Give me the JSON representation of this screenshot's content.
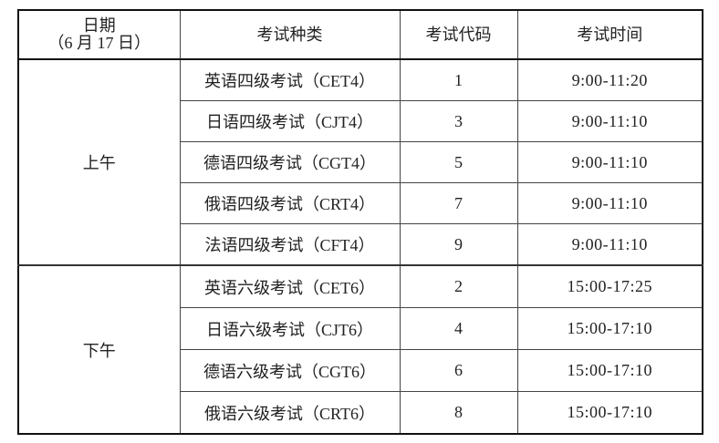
{
  "header": {
    "date_label": "日期",
    "date_value": "（6 月 17 日）",
    "exam_type": "考试种类",
    "exam_code": "考试代码",
    "exam_time": "考试时间"
  },
  "groups": [
    {
      "period": "上午",
      "rows": [
        {
          "name": "英语四级考试（CET4）",
          "code": "1",
          "time": "9:00-11:20"
        },
        {
          "name": "日语四级考试（CJT4）",
          "code": "3",
          "time": "9:00-11:10"
        },
        {
          "name": "德语四级考试（CGT4）",
          "code": "5",
          "time": "9:00-11:10"
        },
        {
          "name": "俄语四级考试（CRT4）",
          "code": "7",
          "time": "9:00-11:10"
        },
        {
          "name": "法语四级考试（CFT4）",
          "code": "9",
          "time": "9:00-11:10"
        }
      ]
    },
    {
      "period": "下午",
      "rows": [
        {
          "name": "英语六级考试（CET6）",
          "code": "2",
          "time": "15:00-17:25"
        },
        {
          "name": "日语六级考试（CJT6）",
          "code": "4",
          "time": "15:00-17:10"
        },
        {
          "name": "德语六级考试（CGT6）",
          "code": "6",
          "time": "15:00-17:10"
        },
        {
          "name": "俄语六级考试（CRT6）",
          "code": "8",
          "time": "15:00-17:10"
        }
      ]
    }
  ]
}
